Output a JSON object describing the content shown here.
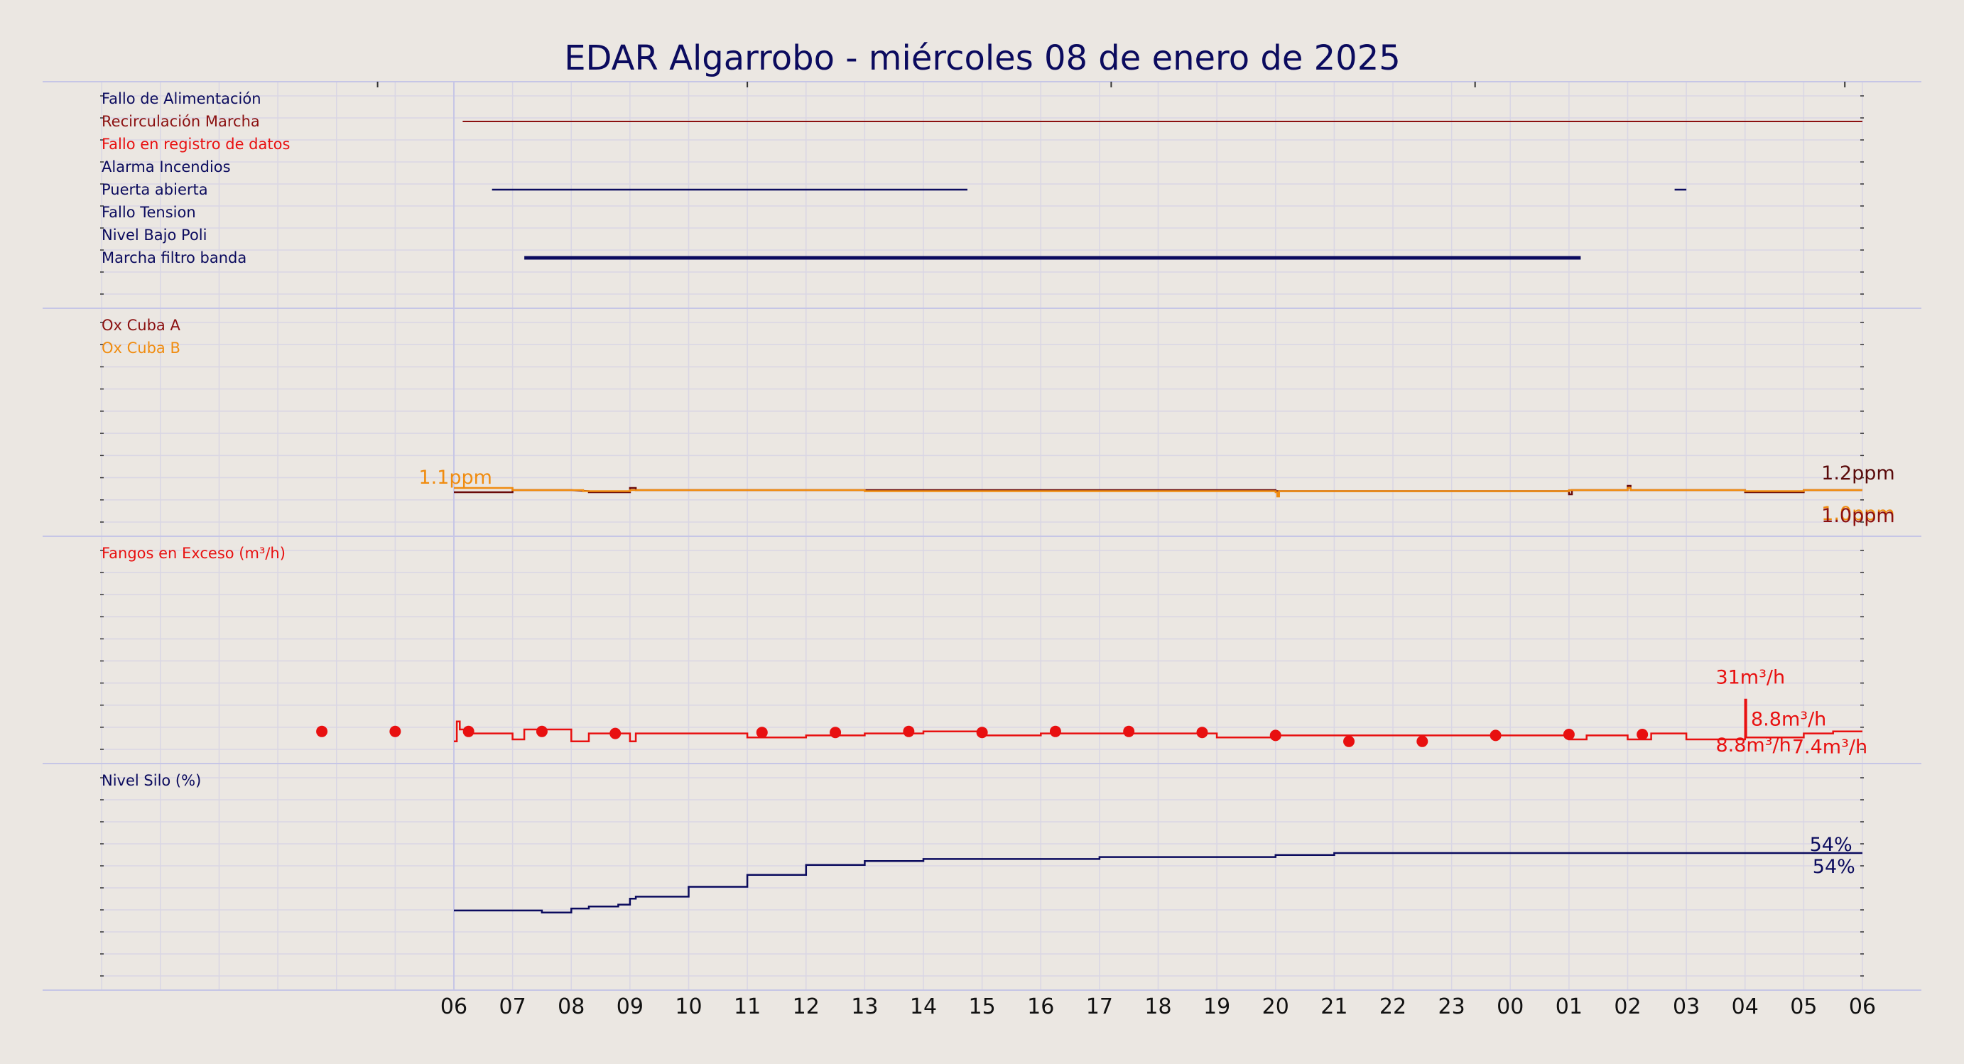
{
  "title": "EDAR Algarrobo   -   miércoles 08 de enero de 2025",
  "colors": {
    "background": "#ebe7e2",
    "navy": "#0b0b5e",
    "darkred": "#8b1010",
    "orange": "#f08c10",
    "red": "#e81010",
    "darkbrown": "#5a0a0a",
    "grid": "#d9d6e4",
    "separator": "#c6c6e6"
  },
  "chart_data": {
    "type": "line",
    "x_tick_labels": [
      "06",
      "07",
      "08",
      "09",
      "10",
      "11",
      "12",
      "13",
      "14",
      "15",
      "16",
      "17",
      "18",
      "19",
      "20",
      "21",
      "22",
      "23",
      "00",
      "01",
      "02",
      "03",
      "04",
      "05",
      "06"
    ],
    "panels": [
      {
        "id": "alarms",
        "kind": "status",
        "labels": [
          {
            "text": "Fallo de Alimentación",
            "color": "#0b0b5e"
          },
          {
            "text": "Recirculación Marcha",
            "color": "#8b1010"
          },
          {
            "text": "Fallo en registro de datos",
            "color": "#e81010"
          },
          {
            "text": "Alarma Incendios",
            "color": "#0b0b5e"
          },
          {
            "text": "Puerta abierta",
            "color": "#0b0b5e"
          },
          {
            "text": "Fallo Tension",
            "color": "#0b0b5e"
          },
          {
            "text": "Nivel Bajo Poli",
            "color": "#0b0b5e"
          },
          {
            "text": "Marcha filtro banda",
            "color": "#0b0b5e"
          }
        ],
        "intervals": [
          {
            "row": 1,
            "start": 0.15,
            "end": 24.0,
            "color": "#8b1010",
            "width": 2
          },
          {
            "row": 4,
            "start": 0.65,
            "end": 8.75,
            "color": "#0b0b5e",
            "width": 2.5
          },
          {
            "row": 4,
            "start": 20.8,
            "end": 21.0,
            "color": "#0b0b5e",
            "width": 2.5
          },
          {
            "row": 7,
            "start": 1.2,
            "end": 19.2,
            "color": "#0b0b5e",
            "width": 5
          }
        ]
      },
      {
        "id": "oxygen",
        "kind": "lines",
        "ylim": [
          0,
          10
        ],
        "labels": [
          {
            "text": "Ox Cuba A",
            "color": "#8b1010"
          },
          {
            "text": "Ox Cuba B",
            "color": "#f08c10"
          }
        ],
        "series": [
          {
            "name": "Ox Cuba A",
            "color": "#6a0a0a",
            "points": [
              [
                0,
                1.0
              ],
              [
                1.0,
                1.0
              ],
              [
                1.0,
                1.1
              ],
              [
                2.0,
                1.1
              ],
              [
                2.3,
                1.05
              ],
              [
                2.3,
                1.0
              ],
              [
                3.0,
                1.0
              ],
              [
                3.0,
                1.2
              ],
              [
                3.1,
                1.2
              ],
              [
                3.1,
                1.1
              ],
              [
                5.0,
                1.1
              ],
              [
                5.0,
                1.1
              ],
              [
                10.0,
                1.1
              ],
              [
                10.0,
                1.1
              ],
              [
                14.0,
                1.1
              ],
              [
                14.0,
                1.05
              ],
              [
                19.0,
                1.05
              ],
              [
                19.0,
                0.9
              ],
              [
                19.05,
                0.9
              ],
              [
                19.05,
                1.1
              ],
              [
                20.0,
                1.1
              ],
              [
                20.0,
                1.3
              ],
              [
                20.05,
                1.3
              ],
              [
                20.05,
                1.1
              ],
              [
                22.0,
                1.1
              ],
              [
                22.0,
                1.0
              ],
              [
                23.0,
                1.0
              ],
              [
                23.0,
                1.1
              ],
              [
                24.0,
                1.1
              ]
            ]
          },
          {
            "name": "Ox Cuba B",
            "color": "#f08c10",
            "points": [
              [
                0,
                1.2
              ],
              [
                1.0,
                1.2
              ],
              [
                1.0,
                1.1
              ],
              [
                2.2,
                1.1
              ],
              [
                2.2,
                1.05
              ],
              [
                3.0,
                1.05
              ],
              [
                3.0,
                1.1
              ],
              [
                7.0,
                1.1
              ],
              [
                7.0,
                1.05
              ],
              [
                14.0,
                1.05
              ],
              [
                14.0,
                1.0
              ],
              [
                14.03,
                1.0
              ],
              [
                14.03,
                0.8
              ],
              [
                14.06,
                0.8
              ],
              [
                14.06,
                1.05
              ],
              [
                19.0,
                1.05
              ],
              [
                19.0,
                1.1
              ],
              [
                20.0,
                1.1
              ],
              [
                20.0,
                1.2
              ],
              [
                20.05,
                1.2
              ],
              [
                20.05,
                1.1
              ],
              [
                22.0,
                1.1
              ],
              [
                22.0,
                1.05
              ],
              [
                23.0,
                1.05
              ],
              [
                23.0,
                1.1
              ],
              [
                24.0,
                1.1
              ]
            ]
          }
        ],
        "annotations": [
          {
            "text": "1.1ppm",
            "x": -0.6,
            "y": 1.4,
            "color": "#f08c10"
          },
          {
            "text": "1.2ppm",
            "x": 23.3,
            "y": 1.6,
            "color": "#5a0a0a"
          },
          {
            "text": "1.0ppm",
            "x": 23.3,
            "y": -0.3,
            "color": "#f08c10"
          },
          {
            "text": "1.0ppm",
            "x": 23.3,
            "y": -0.4,
            "color": "#8b1010"
          }
        ]
      },
      {
        "id": "sludge",
        "kind": "lines",
        "ylim": [
          0,
          100
        ],
        "labels": [
          {
            "text": "Fangos en Exceso (m³/h)",
            "color": "#e81010"
          }
        ],
        "series": [
          {
            "name": "Fangos en Exceso (m³/h)",
            "color": "#e81010",
            "points": [
              [
                0,
                4
              ],
              [
                0.05,
                4
              ],
              [
                0.05,
                14
              ],
              [
                0.1,
                14
              ],
              [
                0.1,
                10
              ],
              [
                0.2,
                10
              ],
              [
                0.2,
                8
              ],
              [
                1.0,
                8
              ],
              [
                1.0,
                5
              ],
              [
                1.2,
                5
              ],
              [
                1.2,
                10
              ],
              [
                2.0,
                10
              ],
              [
                2.0,
                4
              ],
              [
                2.3,
                4
              ],
              [
                2.3,
                8
              ],
              [
                3.0,
                8
              ],
              [
                3.0,
                4
              ],
              [
                3.1,
                4
              ],
              [
                3.1,
                8
              ],
              [
                5.0,
                8
              ],
              [
                5.0,
                6
              ],
              [
                6.0,
                6
              ],
              [
                6.0,
                7
              ],
              [
                7.0,
                7
              ],
              [
                7.0,
                8
              ],
              [
                8.0,
                8
              ],
              [
                8.0,
                9
              ],
              [
                9.0,
                9
              ],
              [
                9.0,
                7
              ],
              [
                10.0,
                7
              ],
              [
                10.0,
                8
              ],
              [
                13.0,
                8
              ],
              [
                13.0,
                6
              ],
              [
                14.0,
                6
              ],
              [
                14.0,
                7
              ],
              [
                19.0,
                7
              ],
              [
                19.0,
                5
              ],
              [
                19.3,
                5
              ],
              [
                19.3,
                7
              ],
              [
                20.0,
                7
              ],
              [
                20.0,
                5
              ],
              [
                20.4,
                5
              ],
              [
                20.4,
                8
              ],
              [
                21.0,
                8
              ],
              [
                21.0,
                5
              ],
              [
                22.0,
                5
              ],
              [
                22.0,
                25
              ],
              [
                22.02,
                25
              ],
              [
                22.02,
                6
              ],
              [
                23.0,
                6
              ],
              [
                23.0,
                8
              ],
              [
                23.5,
                8
              ],
              [
                23.5,
                9
              ],
              [
                24.0,
                9
              ]
            ]
          }
        ],
        "markers": {
          "color": "#e81010",
          "points": [
            [
              -2.25,
              9
            ],
            [
              -1.0,
              9
            ],
            [
              0.25,
              9
            ],
            [
              1.5,
              9
            ],
            [
              2.75,
              8
            ],
            [
              5.25,
              8.5
            ],
            [
              6.5,
              8.5
            ],
            [
              7.75,
              9
            ],
            [
              9.0,
              8.5
            ],
            [
              10.25,
              9
            ],
            [
              11.5,
              9
            ],
            [
              12.75,
              8.5
            ],
            [
              14.0,
              7
            ],
            [
              15.25,
              4
            ],
            [
              16.5,
              4
            ],
            [
              17.75,
              7
            ],
            [
              19.0,
              7.5
            ],
            [
              20.25,
              7.5
            ]
          ]
        },
        "annotations": [
          {
            "text": "31m³/h",
            "x": 21.5,
            "y": 33,
            "color": "#e81010"
          },
          {
            "text": "8.8m³/h",
            "x": 22.1,
            "y": 12,
            "color": "#e81010"
          },
          {
            "text": "8.8m³/h",
            "x": 21.5,
            "y": -1,
            "color": "#e81010"
          },
          {
            "text": "7.4m³/h",
            "x": 22.8,
            "y": -2,
            "color": "#e81010"
          }
        ]
      },
      {
        "id": "silo",
        "kind": "lines",
        "ylim": [
          0,
          100
        ],
        "labels": [
          {
            "text": "Nivel Silo (%)",
            "color": "#0b0b5e"
          }
        ],
        "series": [
          {
            "name": "Nivel Silo (%)",
            "color": "#0b0b5e",
            "points": [
              [
                0,
                33
              ],
              [
                1.5,
                33
              ],
              [
                1.5,
                32
              ],
              [
                2.0,
                32
              ],
              [
                2.0,
                34
              ],
              [
                2.3,
                34
              ],
              [
                2.3,
                35
              ],
              [
                2.8,
                35
              ],
              [
                2.8,
                36
              ],
              [
                3.0,
                36
              ],
              [
                3.0,
                39
              ],
              [
                3.1,
                39
              ],
              [
                3.1,
                40
              ],
              [
                4.0,
                40
              ],
              [
                4.0,
                45
              ],
              [
                5.0,
                45
              ],
              [
                5.0,
                51
              ],
              [
                6.0,
                51
              ],
              [
                6.0,
                56
              ],
              [
                7.0,
                56
              ],
              [
                7.0,
                58
              ],
              [
                8.0,
                58
              ],
              [
                8.0,
                59
              ],
              [
                11.0,
                59
              ],
              [
                11.0,
                60
              ],
              [
                14.0,
                60
              ],
              [
                14.0,
                61
              ],
              [
                15.0,
                61
              ],
              [
                15.0,
                62
              ],
              [
                18.0,
                62
              ],
              [
                18.0,
                62
              ],
              [
                24.0,
                62
              ]
            ]
          }
        ],
        "annotations": [
          {
            "text": "54%",
            "x": 23.1,
            "y": 63,
            "color": "#0b0b5e"
          },
          {
            "text": "54%",
            "x": 23.15,
            "y": 52,
            "color": "#0b0b5e"
          }
        ]
      }
    ]
  }
}
